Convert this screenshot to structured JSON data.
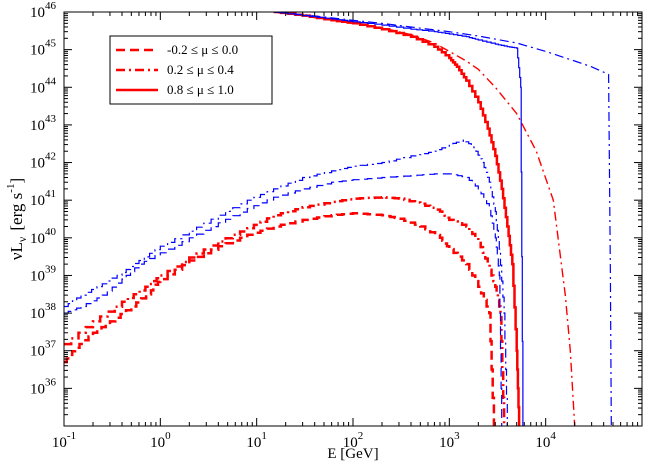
{
  "chart_data": {
    "type": "line",
    "xscale": "log",
    "yscale": "log",
    "xlim": [
      0.1,
      100000
    ],
    "ylim": [
      1e+35,
      1e+46
    ],
    "x_ticks": [
      {
        "value": 0.1,
        "base": "10",
        "exp": "-1"
      },
      {
        "value": 1,
        "base": "10",
        "exp": "0"
      },
      {
        "value": 10,
        "base": "10",
        "exp": "1"
      },
      {
        "value": 100,
        "base": "10",
        "exp": "2"
      },
      {
        "value": 1000,
        "base": "10",
        "exp": "3"
      },
      {
        "value": 10000,
        "base": "10",
        "exp": "4"
      }
    ],
    "y_ticks": [
      {
        "value": 1e+36,
        "base": "10",
        "exp": "36"
      },
      {
        "value": 1e+37,
        "base": "10",
        "exp": "37"
      },
      {
        "value": 1e+38,
        "base": "10",
        "exp": "38"
      },
      {
        "value": 1e+39,
        "base": "10",
        "exp": "39"
      },
      {
        "value": 1e+40,
        "base": "10",
        "exp": "40"
      },
      {
        "value": 1e+41,
        "base": "10",
        "exp": "41"
      },
      {
        "value": 1e+42,
        "base": "10",
        "exp": "42"
      },
      {
        "value": 1e+43,
        "base": "10",
        "exp": "43"
      },
      {
        "value": 1e+44,
        "base": "10",
        "exp": "44"
      },
      {
        "value": 1e+45,
        "base": "10",
        "exp": "45"
      },
      {
        "value": 1e+46,
        "base": "10",
        "exp": "46"
      }
    ],
    "xlabel": "E [GeV]",
    "ylabel": {
      "nu": "ν",
      "L": "L",
      "sub": "ν",
      "unit": "[erg s",
      "sup": "-1",
      "close": "]"
    },
    "legend": {
      "position": "top-left",
      "entries": [
        {
          "label": "-0.2 ≤ μ ≤ 0.0",
          "style": "dashed"
        },
        {
          "label": "0.2 ≤ μ ≤ 0.4",
          "style": "dashdot"
        },
        {
          "label": "0.8 ≤ μ ≤ 1.0",
          "style": "solid"
        }
      ]
    },
    "colors": {
      "red": "#ff0000",
      "blue": "#0000ff"
    },
    "series": [
      {
        "name": "red-dash",
        "color": "red",
        "style": "dashed",
        "width": 2.5,
        "step": true,
        "x": [
          0.1,
          0.13,
          0.2,
          0.3,
          0.5,
          0.8,
          1,
          2,
          4,
          8,
          15,
          30,
          60,
          100,
          200,
          300,
          500,
          800,
          1000,
          1500,
          2000,
          2600,
          2900
        ],
        "y": [
          5e+36,
          1.2e+37,
          3e+37,
          6e+37,
          1.5e+38,
          4e+38,
          8e+38,
          2.5e+39,
          6e+39,
          1.2e+40,
          2e+40,
          3e+40,
          4e+40,
          4.5e+40,
          4e+40,
          3.2e+40,
          2e+40,
          1e+40,
          5e+39,
          2e+39,
          5e+38,
          1e+38,
          1e+35
        ]
      },
      {
        "name": "red-dashdot",
        "color": "red",
        "style": "dashdot",
        "width": 2.5,
        "step": true,
        "x": [
          0.1,
          0.2,
          0.4,
          0.7,
          1,
          2,
          4,
          8,
          15,
          30,
          60,
          100,
          200,
          300,
          500,
          800,
          1000,
          1500,
          2000,
          2500,
          3000,
          3400,
          3700
        ],
        "y": [
          1.5e+37,
          6e+37,
          2e+38,
          5e+38,
          1e+39,
          3e+39,
          8e+39,
          1.8e+40,
          4e+40,
          6.5e+40,
          9e+40,
          1.1e+41,
          1.2e+41,
          1.1e+41,
          8e+40,
          5e+40,
          3e+40,
          2e+40,
          8e+39,
          2e+39,
          5e+38,
          1e+38,
          1e+35
        ]
      },
      {
        "name": "red-smooth-dashdot",
        "color": "red",
        "style": "dashdot",
        "width": 1.4,
        "step": false,
        "x": [
          15,
          30,
          60,
          100,
          200,
          400,
          700,
          1000,
          1500,
          2000,
          3000,
          5000,
          8000,
          12000,
          16000,
          18000,
          20000
        ],
        "y": [
          1e+46,
          8e+45,
          6e+45,
          5e+45,
          3.8e+45,
          2.5e+45,
          1.5e+45,
          9e+44,
          5e+44,
          3e+44,
          1e+44,
          2e+43,
          2e+42,
          1e+41,
          3e+38,
          1e+37,
          1e+35
        ]
      },
      {
        "name": "red-solid",
        "color": "red",
        "style": "solid",
        "width": 2.5,
        "step": true,
        "x": [
          15,
          30,
          60,
          100,
          200,
          400,
          700,
          1000,
          1200,
          1500,
          2000,
          2500,
          3000,
          3500,
          4000,
          4500,
          5000,
          5300
        ],
        "y": [
          1e+46,
          8e+45,
          6e+45,
          5e+45,
          3.5e+45,
          2.2e+45,
          1.2e+45,
          6e+44,
          3.5e+44,
          1.5e+44,
          4e+43,
          8e+42,
          1.5e+42,
          2e+41,
          2e+40,
          2e+39,
          1e+37,
          1e+35
        ]
      },
      {
        "name": "blue-solid-upper",
        "color": "blue",
        "style": "solid",
        "width": 1.2,
        "step": true,
        "x": [
          15,
          30,
          60,
          100,
          200,
          400,
          700,
          1000,
          1500,
          2000,
          3000,
          4000,
          5000,
          5500,
          5800
        ],
        "y": [
          1e+46,
          8e+45,
          6.5e+45,
          5.5e+45,
          4.5e+45,
          3.5e+45,
          3e+45,
          2.6e+45,
          2.2e+45,
          1.8e+45,
          1.4e+45,
          1.2e+45,
          1.1e+45,
          1e+44,
          1e+35
        ]
      },
      {
        "name": "blue-dashdot-upper",
        "color": "blue",
        "style": "dashdot",
        "width": 1.2,
        "step": false,
        "x": [
          15,
          30,
          60,
          100,
          200,
          400,
          1000,
          2000,
          5000,
          10000,
          20000,
          30000,
          45000,
          47000,
          48000
        ],
        "y": [
          1e+46,
          8.5e+45,
          7e+45,
          6e+45,
          5e+45,
          4e+45,
          3e+45,
          2.3e+45,
          1.5e+45,
          9e+44,
          5e+44,
          3.5e+44,
          2.2e+44,
          1e+39,
          1e+35
        ]
      },
      {
        "name": "blue-dash-lower",
        "color": "blue",
        "style": "dashed",
        "width": 1.2,
        "step": true,
        "x": [
          0.1,
          0.15,
          0.25,
          0.4,
          0.6,
          1,
          2,
          4,
          8,
          15,
          30,
          60,
          100,
          200,
          400,
          700,
          1000,
          1500,
          2000,
          2600,
          3000,
          3300,
          3500
        ],
        "y": [
          1e+38,
          1.5e+38,
          3e+38,
          8e+38,
          2e+39,
          4e+39,
          1e+40,
          2.5e+40,
          6e+40,
          1.2e+41,
          2e+41,
          3e+41,
          3.5e+41,
          4e+41,
          4.5e+41,
          5e+41,
          5e+41,
          4e+41,
          2e+41,
          6e+40,
          1e+40,
          1e+39,
          1e+35
        ]
      },
      {
        "name": "blue-dashdot-lower",
        "color": "blue",
        "style": "dashdot",
        "width": 1.2,
        "step": true,
        "x": [
          0.1,
          0.15,
          0.25,
          0.4,
          0.6,
          1,
          2,
          4,
          8,
          15,
          30,
          60,
          100,
          200,
          400,
          700,
          1000,
          1400,
          1800,
          2200,
          2600,
          3000,
          3300,
          3700,
          4000
        ],
        "y": [
          1.5e+38,
          3e+38,
          6e+38,
          1.2e+39,
          2.5e+39,
          6e+39,
          1.5e+40,
          4e+40,
          1e+41,
          2e+41,
          4e+41,
          6e+41,
          8e+41,
          1e+42,
          1.5e+42,
          2e+42,
          3e+42,
          4e+42,
          2.5e+42,
          1e+42,
          3e+41,
          5e+40,
          5e+39,
          1e+38,
          1e+35
        ]
      }
    ]
  }
}
